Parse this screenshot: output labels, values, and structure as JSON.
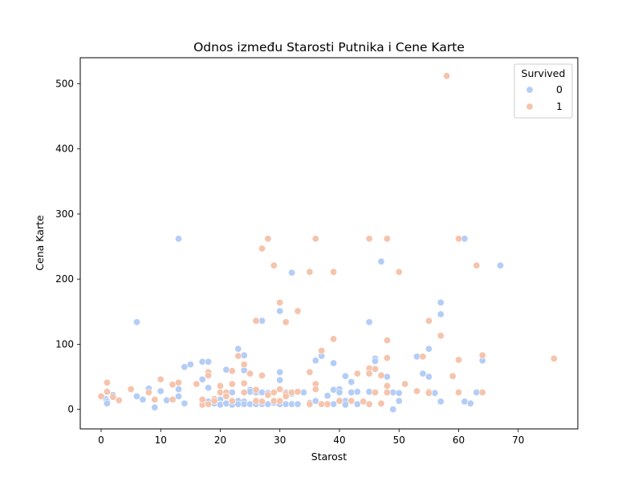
{
  "chart_data": {
    "type": "scatter",
    "title": "Odnos između Starosti Putnika i Cene Karte",
    "xlabel": "Starost",
    "ylabel": "Cena Karte",
    "xlim": [
      -3.5,
      80
    ],
    "ylim": [
      -30,
      540
    ],
    "xticks": [
      0,
      10,
      20,
      30,
      40,
      50,
      60,
      70
    ],
    "yticks": [
      0,
      100,
      200,
      300,
      400,
      500
    ],
    "grid": false,
    "legend": {
      "title": "Survived",
      "placement": "top-right"
    },
    "series": [
      {
        "name": "0",
        "color": "#b4cdf6",
        "points": [
          [
            0.8,
            16
          ],
          [
            1,
            12
          ],
          [
            1,
            9
          ],
          [
            2,
            22
          ],
          [
            6,
            20
          ],
          [
            6,
            134
          ],
          [
            7,
            15
          ],
          [
            8,
            32
          ],
          [
            9,
            3
          ],
          [
            10,
            28
          ],
          [
            11,
            14
          ],
          [
            13,
            262
          ],
          [
            13,
            31
          ],
          [
            13,
            20
          ],
          [
            14,
            9
          ],
          [
            14,
            65
          ],
          [
            15,
            69
          ],
          [
            17,
            73
          ],
          [
            17,
            46
          ],
          [
            17,
            12
          ],
          [
            18,
            8
          ],
          [
            18,
            73
          ],
          [
            18,
            33
          ],
          [
            18,
            12
          ],
          [
            19,
            10
          ],
          [
            19,
            9
          ],
          [
            20,
            15
          ],
          [
            20,
            8
          ],
          [
            20,
            7
          ],
          [
            21,
            8
          ],
          [
            21,
            20
          ],
          [
            21,
            61
          ],
          [
            21,
            9
          ],
          [
            22,
            26
          ],
          [
            22,
            8
          ],
          [
            22,
            7
          ],
          [
            23,
            93
          ],
          [
            23,
            13
          ],
          [
            23,
            8
          ],
          [
            24,
            83
          ],
          [
            24,
            60
          ],
          [
            24,
            12
          ],
          [
            24,
            8
          ],
          [
            25,
            30
          ],
          [
            25,
            27
          ],
          [
            25,
            8
          ],
          [
            26,
            26
          ],
          [
            26,
            12
          ],
          [
            26,
            8
          ],
          [
            27,
            136
          ],
          [
            27,
            26
          ],
          [
            27,
            8
          ],
          [
            28,
            25
          ],
          [
            28,
            8
          ],
          [
            29,
            26
          ],
          [
            29,
            10
          ],
          [
            30,
            151
          ],
          [
            30,
            57
          ],
          [
            30,
            45
          ],
          [
            30,
            13
          ],
          [
            30,
            8
          ],
          [
            31,
            26
          ],
          [
            31,
            8
          ],
          [
            32,
            210
          ],
          [
            32,
            24
          ],
          [
            32,
            8
          ],
          [
            33,
            8
          ],
          [
            34,
            26
          ],
          [
            35,
            10
          ],
          [
            35,
            7
          ],
          [
            36,
            75
          ],
          [
            36,
            13
          ],
          [
            37,
            82
          ],
          [
            37,
            8
          ],
          [
            38,
            21
          ],
          [
            38,
            7
          ],
          [
            39,
            71
          ],
          [
            39,
            30
          ],
          [
            39,
            8
          ],
          [
            40,
            31
          ],
          [
            40,
            26
          ],
          [
            40,
            14
          ],
          [
            41,
            51
          ],
          [
            41,
            13
          ],
          [
            41,
            7
          ],
          [
            42,
            42
          ],
          [
            42,
            26
          ],
          [
            42,
            13
          ],
          [
            43,
            27
          ],
          [
            43,
            8
          ],
          [
            44,
            12
          ],
          [
            45,
            134
          ],
          [
            45,
            27
          ],
          [
            45,
            8
          ],
          [
            46,
            78
          ],
          [
            46,
            74
          ],
          [
            46,
            26
          ],
          [
            47,
            227
          ],
          [
            47,
            53
          ],
          [
            47,
            8
          ],
          [
            48,
            50
          ],
          [
            48,
            26
          ],
          [
            49,
            0
          ],
          [
            49,
            26
          ],
          [
            50,
            211
          ],
          [
            50,
            25
          ],
          [
            50,
            13
          ],
          [
            53,
            81
          ],
          [
            54,
            55
          ],
          [
            55,
            93
          ],
          [
            55,
            50
          ],
          [
            56,
            25
          ],
          [
            57,
            164
          ],
          [
            57,
            146
          ],
          [
            57,
            12
          ],
          [
            61,
            262
          ],
          [
            61,
            12
          ],
          [
            62,
            9
          ],
          [
            63,
            26
          ],
          [
            64,
            75
          ],
          [
            67,
            221
          ]
        ]
      },
      {
        "name": "1",
        "color": "#f5c4ad",
        "points": [
          [
            0,
            20
          ],
          [
            1,
            41
          ],
          [
            1,
            27
          ],
          [
            2,
            19
          ],
          [
            3,
            14
          ],
          [
            5,
            31
          ],
          [
            8,
            26
          ],
          [
            9,
            15
          ],
          [
            10,
            46
          ],
          [
            12,
            38
          ],
          [
            12,
            15
          ],
          [
            13,
            41
          ],
          [
            16,
            39
          ],
          [
            17,
            7
          ],
          [
            17,
            15
          ],
          [
            18,
            57
          ],
          [
            18,
            52
          ],
          [
            18,
            8
          ],
          [
            19,
            16
          ],
          [
            19,
            13
          ],
          [
            20,
            36
          ],
          [
            20,
            26
          ],
          [
            21,
            26
          ],
          [
            21,
            20
          ],
          [
            22,
            39
          ],
          [
            22,
            59
          ],
          [
            22,
            13
          ],
          [
            23,
            82
          ],
          [
            24,
            69
          ],
          [
            24,
            40
          ],
          [
            24,
            26
          ],
          [
            25,
            55
          ],
          [
            26,
            136
          ],
          [
            26,
            30
          ],
          [
            26,
            13
          ],
          [
            27,
            247
          ],
          [
            27,
            52
          ],
          [
            27,
            12
          ],
          [
            28,
            262
          ],
          [
            28,
            22
          ],
          [
            29,
            221
          ],
          [
            29,
            26
          ],
          [
            29,
            13
          ],
          [
            30,
            164
          ],
          [
            30,
            31
          ],
          [
            30,
            13
          ],
          [
            31,
            134
          ],
          [
            31,
            24
          ],
          [
            31,
            20
          ],
          [
            32,
            26
          ],
          [
            33,
            151
          ],
          [
            33,
            27
          ],
          [
            35,
            211
          ],
          [
            35,
            57
          ],
          [
            35,
            8
          ],
          [
            36,
            262
          ],
          [
            36,
            39
          ],
          [
            36,
            31
          ],
          [
            37,
            90
          ],
          [
            37,
            8
          ],
          [
            38,
            8
          ],
          [
            39,
            211
          ],
          [
            39,
            108
          ],
          [
            40,
            13
          ],
          [
            42,
            13
          ],
          [
            43,
            55
          ],
          [
            44,
            12
          ],
          [
            45,
            262
          ],
          [
            45,
            63
          ],
          [
            45,
            55
          ],
          [
            45,
            8
          ],
          [
            46,
            62
          ],
          [
            46,
            26
          ],
          [
            47,
            52
          ],
          [
            47,
            9
          ],
          [
            48,
            262
          ],
          [
            48,
            106
          ],
          [
            48,
            79
          ],
          [
            48,
            26
          ],
          [
            48,
            36
          ],
          [
            50,
            211
          ],
          [
            51,
            39
          ],
          [
            53,
            28
          ],
          [
            54,
            81
          ],
          [
            55,
            136
          ],
          [
            55,
            27
          ],
          [
            55,
            25
          ],
          [
            57,
            113
          ],
          [
            58,
            512
          ],
          [
            59,
            51
          ],
          [
            60,
            262
          ],
          [
            60,
            76
          ],
          [
            60,
            26
          ],
          [
            63,
            221
          ],
          [
            64,
            83
          ],
          [
            64,
            26
          ],
          [
            76,
            78
          ]
        ]
      }
    ]
  }
}
